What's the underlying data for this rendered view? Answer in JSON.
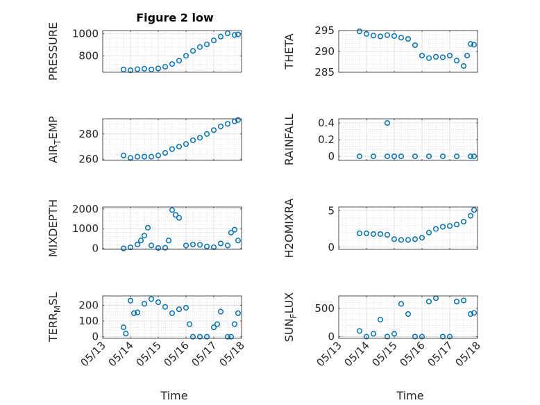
{
  "figure": {
    "title": "Figure 2 low",
    "xlabel": "Time",
    "x_ticks": [
      "05/13",
      "05/14",
      "05/15",
      "05/16",
      "05/17",
      "05/18"
    ],
    "marker_color": "#0072BD",
    "marker": "open-circle"
  },
  "chart_data": [
    {
      "type": "scatter",
      "ylabel": "PRESSURE",
      "xlim": [
        "05/13",
        "05/18"
      ],
      "ylim": [
        650,
        1030
      ],
      "yticks": [
        800,
        1000
      ],
      "grid": true,
      "x": [
        "05/13 18:00",
        "05/14 00:00",
        "05/14 06:00",
        "05/14 12:00",
        "05/14 18:00",
        "05/15 00:00",
        "05/15 06:00",
        "05/15 12:00",
        "05/15 18:00",
        "05/16 00:00",
        "05/16 06:00",
        "05/16 12:00",
        "05/16 18:00",
        "05/17 00:00",
        "05/17 06:00",
        "05/17 12:00",
        "05/17 18:00",
        "05/17 21:00"
      ],
      "y": [
        675,
        668,
        678,
        682,
        675,
        685,
        700,
        725,
        755,
        800,
        845,
        880,
        905,
        940,
        975,
        1005,
        990,
        995
      ]
    },
    {
      "type": "scatter",
      "ylabel": "THETA",
      "xlim": [
        "05/13",
        "05/18"
      ],
      "ylim": [
        285,
        295
      ],
      "yticks": [
        285,
        290,
        295
      ],
      "grid": true,
      "x": [
        "05/13 18:00",
        "05/14 00:00",
        "05/14 06:00",
        "05/14 12:00",
        "05/14 18:00",
        "05/15 00:00",
        "05/15 06:00",
        "05/15 12:00",
        "05/15 18:00",
        "05/16 00:00",
        "05/16 06:00",
        "05/16 12:00",
        "05/16 18:00",
        "05/17 00:00",
        "05/17 06:00",
        "05/17 12:00",
        "05/17 15:00",
        "05/17 18:00",
        "05/17 21:00"
      ],
      "y": [
        294.8,
        294.2,
        293.8,
        293.6,
        293.9,
        293.7,
        293.3,
        293.0,
        291.5,
        289.0,
        288.4,
        288.7,
        288.6,
        289.0,
        287.8,
        286.5,
        289.0,
        291.8,
        291.6
      ]
    },
    {
      "type": "scatter",
      "ylabel": "AIR_TEMP",
      "xlim": [
        "05/13",
        "05/18"
      ],
      "ylim": [
        259,
        292
      ],
      "yticks": [
        260,
        280
      ],
      "grid": true,
      "x": [
        "05/13 18:00",
        "05/14 00:00",
        "05/14 06:00",
        "05/14 12:00",
        "05/14 18:00",
        "05/15 00:00",
        "05/15 06:00",
        "05/15 12:00",
        "05/15 18:00",
        "05/16 00:00",
        "05/16 06:00",
        "05/16 12:00",
        "05/16 18:00",
        "05/17 00:00",
        "05/17 06:00",
        "05/17 12:00",
        "05/17 18:00",
        "05/17 21:00"
      ],
      "y": [
        263,
        261,
        262,
        262,
        262,
        263,
        265,
        268,
        270,
        272,
        275,
        277,
        280,
        283,
        286,
        288,
        290,
        291
      ]
    },
    {
      "type": "scatter",
      "ylabel": "RAINFALL",
      "xlim": [
        "05/13",
        "05/18"
      ],
      "ylim": [
        -0.05,
        0.45
      ],
      "yticks": [
        0,
        0.2,
        0.4
      ],
      "grid": true,
      "x": [
        "05/13 18:00",
        "05/14 06:00",
        "05/14 18:00",
        "05/15 00:00",
        "05/15 06:00",
        "05/15 18:00",
        "05/16 06:00",
        "05/16 18:00",
        "05/17 06:00",
        "05/17 18:00",
        "05/17 21:00",
        "05/14 18:00"
      ],
      "y": [
        0,
        0,
        0,
        0,
        0,
        0,
        0,
        0,
        0,
        0,
        0,
        0.4
      ]
    },
    {
      "type": "scatter",
      "ylabel": "MIXDEPTH",
      "xlim": [
        "05/13",
        "05/18"
      ],
      "ylim": [
        -50,
        2100
      ],
      "yticks": [
        0,
        1000,
        2000
      ],
      "grid": true,
      "x": [
        "05/13 18:00",
        "05/14 00:00",
        "05/14 06:00",
        "05/14 09:00",
        "05/14 12:00",
        "05/14 15:00",
        "05/14 18:00",
        "05/15 00:00",
        "05/15 06:00",
        "05/15 09:00",
        "05/15 12:00",
        "05/15 15:00",
        "05/15 18:00",
        "05/16 00:00",
        "05/16 06:00",
        "05/16 12:00",
        "05/16 18:00",
        "05/17 00:00",
        "05/17 06:00",
        "05/17 12:00",
        "05/17 15:00",
        "05/17 18:00",
        "05/17 21:00"
      ],
      "y": [
        0,
        50,
        200,
        400,
        650,
        1050,
        150,
        20,
        30,
        400,
        1950,
        1700,
        1550,
        150,
        200,
        180,
        100,
        60,
        250,
        150,
        800,
        950,
        400
      ]
    },
    {
      "type": "scatter",
      "ylabel": "H2OMIXRA",
      "xlim": [
        "05/13",
        "05/18"
      ],
      "ylim": [
        -0.3,
        5.5
      ],
      "yticks": [
        0,
        5
      ],
      "grid": true,
      "x": [
        "05/13 18:00",
        "05/14 00:00",
        "05/14 06:00",
        "05/14 12:00",
        "05/14 18:00",
        "05/15 00:00",
        "05/15 06:00",
        "05/15 12:00",
        "05/15 18:00",
        "05/16 00:00",
        "05/16 06:00",
        "05/16 12:00",
        "05/16 18:00",
        "05/17 00:00",
        "05/17 06:00",
        "05/17 12:00",
        "05/17 18:00",
        "05/17 21:00"
      ],
      "y": [
        1.9,
        1.9,
        1.8,
        1.8,
        1.7,
        1.1,
        1.0,
        1.0,
        1.1,
        1.3,
        2.0,
        2.5,
        2.8,
        2.9,
        3.1,
        3.5,
        4.3,
        5.1
      ]
    },
    {
      "type": "scatter",
      "ylabel": "TERR_MSL",
      "xlim": [
        "05/13",
        "05/18"
      ],
      "ylim": [
        -10,
        260
      ],
      "yticks": [
        0,
        100,
        200
      ],
      "grid": true,
      "x": [
        "05/13 18:00",
        "05/13 20:00",
        "05/14 00:00",
        "05/14 03:00",
        "05/14 06:00",
        "05/14 12:00",
        "05/14 18:00",
        "05/15 00:00",
        "05/15 06:00",
        "05/15 12:00",
        "05/15 18:00",
        "05/16 00:00",
        "05/16 03:00",
        "05/16 06:00",
        "05/16 12:00",
        "05/16 18:00",
        "05/17 00:00",
        "05/17 03:00",
        "05/17 06:00",
        "05/17 12:00",
        "05/17 15:00",
        "05/17 18:00",
        "05/17 21:00"
      ],
      "y": [
        60,
        20,
        230,
        150,
        155,
        210,
        240,
        220,
        190,
        150,
        175,
        185,
        80,
        0,
        0,
        0,
        60,
        80,
        160,
        0,
        0,
        80,
        150
      ]
    },
    {
      "type": "scatter",
      "ylabel": "SUN_FLUX",
      "xlim": [
        "05/13",
        "05/18"
      ],
      "ylim": [
        -30,
        720
      ],
      "yticks": [
        0,
        500
      ],
      "grid": true,
      "x": [
        "05/13 18:00",
        "05/14 00:00",
        "05/14 06:00",
        "05/14 12:00",
        "05/14 18:00",
        "05/15 00:00",
        "05/15 06:00",
        "05/15 12:00",
        "05/15 18:00",
        "05/16 00:00",
        "05/16 06:00",
        "05/16 12:00",
        "05/16 18:00",
        "05/17 00:00",
        "05/17 06:00",
        "05/17 12:00",
        "05/17 18:00",
        "05/17 21:00"
      ],
      "y": [
        100,
        0,
        50,
        300,
        0,
        50,
        580,
        400,
        0,
        0,
        620,
        680,
        0,
        0,
        620,
        640,
        400,
        420
      ]
    }
  ]
}
